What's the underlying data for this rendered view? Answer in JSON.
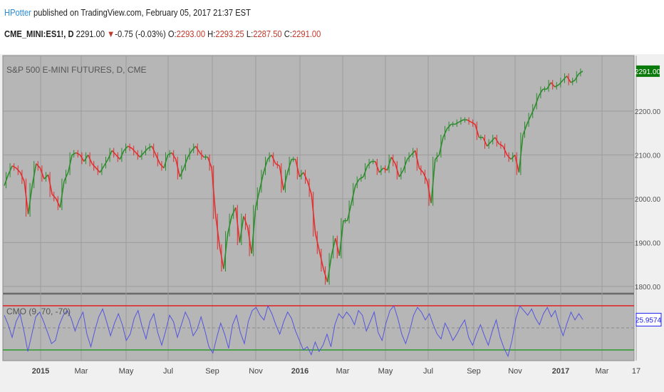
{
  "header": {
    "user": "HPotter",
    "publish_text": " published on TradingView.com, February 05, 2017 21:37 EST",
    "symbol": "CME_MINI:ES1!, D",
    "last": "2291.00",
    "down_arrow": "▼",
    "change": "-0.75 (-0.03%)",
    "o_label": "O:",
    "o_value": "2293.00",
    "h_label": "H:",
    "h_value": "2293.25",
    "l_label": "L:",
    "l_value": "2287.50",
    "c_label": "C:",
    "c_value": "2291.00"
  },
  "colors": {
    "pane_bg": "#b6b6b6",
    "bull": "#2e8b2e",
    "bear": "#e03030",
    "cmo_line": "#5555dd",
    "upper_band": "#e02020",
    "lower_band": "#2a9a2a",
    "price_tag": "#0a7a0a",
    "cmo_tag": "#2222ee"
  },
  "chart_data": [
    {
      "type": "line",
      "title": "S&P 500 E-MINI FUTURES, D, CME",
      "y_ticks": [
        "2291.00",
        "2200.00",
        "2100.00",
        "2000.00",
        "1900.00",
        "1800.00"
      ],
      "ylim": [
        1795,
        2320
      ],
      "last_value": "2291.00",
      "x_ticks": [
        "2015",
        "Mar",
        "May",
        "Jul",
        "Sep",
        "Nov",
        "2016",
        "Mar",
        "May",
        "Jul",
        "Sep",
        "Nov",
        "2017",
        "Mar",
        "17"
      ],
      "series": [
        {
          "values": [
            2030,
            2055,
            2075,
            2070,
            2060,
            2040,
            1965,
            2030,
            2080,
            2070,
            2045,
            2055,
            2010,
            2000,
            1980,
            2040,
            2060,
            2100,
            2105,
            2100,
            2085,
            2100,
            2080,
            2070,
            2060,
            2075,
            2090,
            2110,
            2100,
            2090,
            2110,
            2120,
            2115,
            2105,
            2095,
            2105,
            2115,
            2120,
            2100,
            2080,
            2070,
            2100,
            2105,
            2090,
            2050,
            2070,
            2095,
            2110,
            2120,
            2105,
            2095,
            2095,
            2070,
            1960,
            1890,
            1840,
            1920,
            1960,
            1980,
            1900,
            1960,
            1935,
            1875,
            1980,
            2020,
            2060,
            2090,
            2100,
            2080,
            2075,
            2020,
            2060,
            2090,
            2090,
            2050,
            2060,
            2040,
            2010,
            1920,
            1880,
            1840,
            1810,
            1870,
            1910,
            1870,
            1950,
            1950,
            1990,
            2030,
            2045,
            2050,
            2075,
            2085,
            2085,
            2060,
            2070,
            2065,
            2095,
            2080,
            2050,
            2065,
            2090,
            2100,
            2110,
            2070,
            2060,
            2040,
            1990,
            2090,
            2100,
            2140,
            2160,
            2170,
            2170,
            2175,
            2180,
            2180,
            2175,
            2170,
            2140,
            2140,
            2120,
            2130,
            2140,
            2125,
            2120,
            2100,
            2090,
            2100,
            2060,
            2145,
            2170,
            2190,
            2210,
            2235,
            2250,
            2250,
            2265,
            2255,
            2260,
            2270,
            2280,
            2265,
            2270,
            2285,
            2291
          ]
        }
      ]
    },
    {
      "type": "line",
      "title": "CMO (9, 70, -70)",
      "last_value": "25.9574",
      "bands": [
        70,
        -70
      ],
      "ylim": [
        -95,
        95
      ],
      "series": [
        {
          "values": [
            40,
            10,
            -30,
            20,
            45,
            -10,
            -75,
            -20,
            35,
            50,
            20,
            -15,
            -50,
            -40,
            10,
            40,
            55,
            30,
            -10,
            25,
            50,
            -20,
            -60,
            -10,
            35,
            60,
            20,
            -25,
            15,
            45,
            10,
            -40,
            -20,
            30,
            55,
            5,
            -35,
            20,
            45,
            -15,
            -55,
            -10,
            40,
            20,
            -30,
            10,
            50,
            25,
            -25,
            -5,
            35,
            -10,
            -60,
            -80,
            -30,
            15,
            -20,
            -65,
            10,
            40,
            -15,
            -50,
            20,
            55,
            65,
            40,
            25,
            70,
            45,
            10,
            -20,
            20,
            50,
            30,
            -10,
            -40,
            -70,
            -60,
            -85,
            -45,
            -75,
            -55,
            -20,
            -60,
            10,
            45,
            30,
            50,
            35,
            10,
            55,
            40,
            -10,
            20,
            50,
            -15,
            -40,
            15,
            55,
            70,
            30,
            -20,
            -50,
            -10,
            40,
            65,
            50,
            25,
            45,
            10,
            -20,
            -35,
            15,
            -10,
            -40,
            -20,
            5,
            25,
            -30,
            -55,
            -20,
            10,
            -25,
            -55,
            -10,
            25,
            -30,
            -65,
            -90,
            -40,
            30,
            70,
            55,
            40,
            60,
            30,
            10,
            45,
            65,
            35,
            55,
            10,
            -25,
            15,
            50,
            25,
            45,
            26
          ]
        }
      ]
    }
  ]
}
